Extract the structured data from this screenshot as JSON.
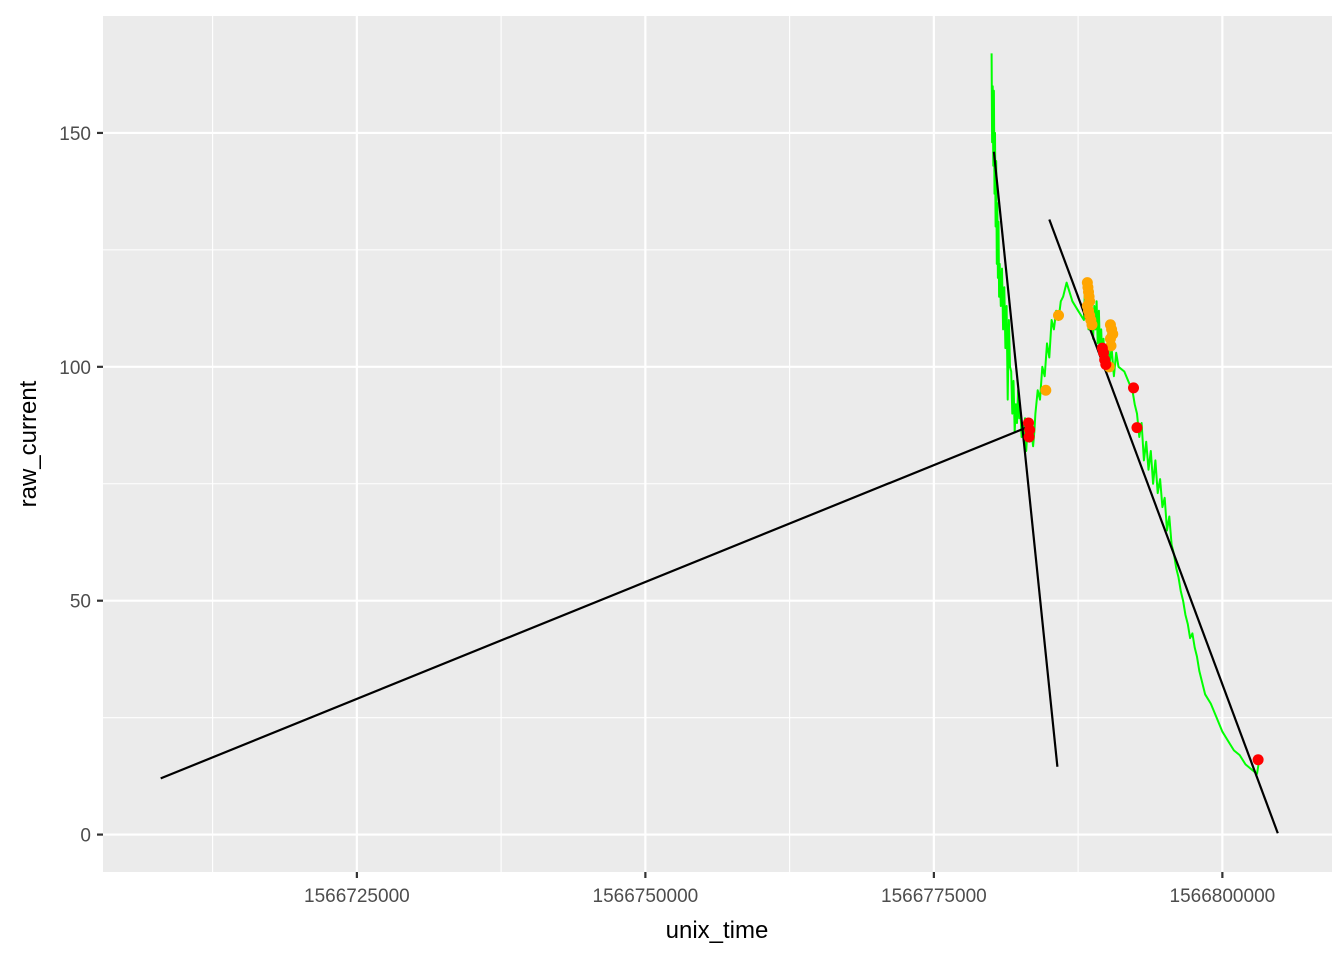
{
  "chart_data": {
    "type": "line",
    "title": "",
    "xlabel": "unix_time",
    "ylabel": "raw_current",
    "xlim": [
      1566703000,
      1566809500
    ],
    "ylim": [
      -8,
      175
    ],
    "x_ticks": [
      1566725000,
      1566750000,
      1566775000,
      1566800000
    ],
    "x_tick_labels": [
      "1566725000",
      "1566750000",
      "1566775000",
      "1566800000"
    ],
    "y_ticks": [
      0,
      50,
      100,
      150
    ],
    "y_tick_labels": [
      "0",
      "50",
      "100",
      "150"
    ],
    "grid": true,
    "legend": "none",
    "colors": {
      "panel": "#ebebeb",
      "grid": "#ffffff",
      "series_line": "#00ff00",
      "fit_lines": "#000000",
      "orange_points": "#ffa500",
      "red_points": "#ff0000"
    },
    "series": [
      {
        "type": "line",
        "color": "#00ff00",
        "x": [
          1566780000,
          1566780050,
          1566780100,
          1566780150,
          1566780200,
          1566780250,
          1566780300,
          1566780350,
          1566780400,
          1566780450,
          1566780500,
          1566780550,
          1566780600,
          1566780650,
          1566780700,
          1566780800,
          1566780900,
          1566781000,
          1566781100,
          1566781200,
          1566781300,
          1566781400,
          1566781500,
          1566781600,
          1566781700,
          1566781800,
          1566781900,
          1566782000,
          1566782100,
          1566782200,
          1566782300,
          1566782400,
          1566782500,
          1566782600,
          1566782700,
          1566782800,
          1566782900,
          1566783000,
          1566783100,
          1566783200,
          1566783300,
          1566783400,
          1566783500,
          1566783600,
          1566783700,
          1566783800,
          1566784000,
          1566784200,
          1566784400,
          1566784600,
          1566784800,
          1566785000,
          1566785200,
          1566785400,
          1566785600,
          1566785800,
          1566786000,
          1566786200,
          1566786500,
          1566787000,
          1566787500,
          1566788000,
          1566788100,
          1566788200,
          1566788300,
          1566788400,
          1566788500,
          1566788600,
          1566788700,
          1566788800,
          1566788900,
          1566789000,
          1566789100,
          1566789200,
          1566789300,
          1566789400,
          1566789500,
          1566789600,
          1566789700,
          1566789800,
          1566789900,
          1566790000,
          1566790100,
          1566790200,
          1566790400,
          1566790600,
          1566790800,
          1566791000,
          1566791500,
          1566792000,
          1566792200,
          1566792400,
          1566792600,
          1566792800,
          1566793000,
          1566793200,
          1566793400,
          1566793600,
          1566793800,
          1566794000,
          1566794200,
          1566794400,
          1566794600,
          1566794800,
          1566795000,
          1566795200,
          1566795400,
          1566795600,
          1566795800,
          1566796000,
          1566796200,
          1566796400,
          1566796600,
          1566796800,
          1566797000,
          1566797200,
          1566797400,
          1566797600,
          1566797800,
          1566798000,
          1566798500,
          1566799000,
          1566799500,
          1566800000,
          1566800500,
          1566801000,
          1566801500,
          1566802000,
          1566802500,
          1566803000,
          1566803200
        ],
        "y": [
          167,
          148,
          160,
          143,
          159,
          137,
          150,
          130,
          144,
          122,
          135,
          119,
          131,
          115,
          122,
          113,
          121,
          108,
          117,
          104,
          113,
          93,
          110,
          100,
          99,
          90,
          97,
          86,
          92,
          88,
          95,
          89,
          91,
          85,
          88,
          84,
          89,
          82,
          86,
          88,
          84,
          87,
          85,
          83,
          86,
          90,
          95,
          93,
          100,
          98,
          105,
          102,
          110,
          108,
          112,
          110,
          114,
          115,
          118,
          114,
          112,
          110,
          117,
          111,
          115,
          108,
          116,
          112,
          110,
          106,
          113,
          108,
          114,
          105,
          112,
          103,
          108,
          101,
          106,
          100,
          104,
          102,
          107,
          100,
          104,
          98,
          103,
          100,
          99,
          96,
          95,
          92,
          90,
          85,
          88,
          80,
          84,
          78,
          82,
          75,
          80,
          73,
          76,
          70,
          72,
          65,
          68,
          62,
          60,
          57,
          55,
          52,
          50,
          47,
          45,
          42,
          43,
          40,
          38,
          35,
          30,
          28,
          25,
          22,
          20,
          18,
          17,
          15,
          14,
          13,
          16
        ]
      },
      {
        "type": "line",
        "color": "#000000",
        "name": "",
        "x": [
          1566708000,
          1566783500
        ],
        "y": [
          12.0,
          87.5
        ]
      },
      {
        "type": "line",
        "color": "#000000",
        "x": [
          1566780200,
          1566785700
        ],
        "y": [
          146.0,
          14.5
        ]
      },
      {
        "type": "line",
        "color": "#000000",
        "x": [
          1566785000,
          1566804800
        ],
        "y": [
          131.5,
          0.3
        ]
      },
      {
        "type": "scatter",
        "color": "#ffa500",
        "x": [
          1566784700,
          1566785800,
          1566788300,
          1566788350,
          1566788400,
          1566788450,
          1566788500,
          1566788300,
          1566788400,
          1566788500,
          1566788600,
          1566788700,
          1566790300,
          1566790400,
          1566790500,
          1566790200,
          1566790350,
          1566790300
        ],
        "y": [
          95,
          111,
          118,
          117,
          116,
          115,
          114,
          113,
          112,
          111,
          110,
          109,
          109,
          108,
          107,
          100,
          104.5,
          106
        ]
      },
      {
        "type": "scatter",
        "color": "#ff0000",
        "x": [
          1566783200,
          1566783300,
          1566783250,
          1566789600,
          1566789700,
          1566789800,
          1566789900,
          1566792300,
          1566792600,
          1566803100
        ],
        "y": [
          88,
          86.5,
          85,
          104,
          103,
          101.5,
          100.5,
          95.5,
          87,
          16
        ]
      }
    ]
  }
}
